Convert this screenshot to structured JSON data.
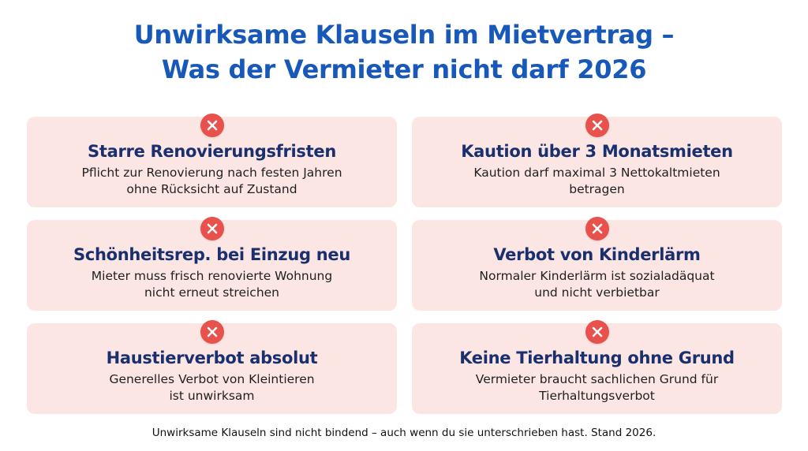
{
  "title": {
    "line1": "Unwirksame Klauseln im Mietvertrag –",
    "line2": "Was der Vermieter nicht darf 2026"
  },
  "colors": {
    "title": "#1758b8",
    "card_background": "#fbe6e4",
    "card_title": "#1a2f6e",
    "icon": "#e8514c"
  },
  "icon": "close-x-circle-icon",
  "cards": [
    {
      "title": "Starre Renovierungsfristen",
      "desc_line1": "Pflicht zur Renovierung nach festen Jahren",
      "desc_line2": "ohne Rücksicht auf Zustand"
    },
    {
      "title": "Kaution über 3 Monatsmieten",
      "desc_line1": "Kaution darf maximal 3 Nettokaltmieten",
      "desc_line2": "betragen"
    },
    {
      "title": "Schönheitsrep. bei Einzug neu",
      "desc_line1": "Mieter muss frisch renovierte Wohnung",
      "desc_line2": "nicht erneut streichen"
    },
    {
      "title": "Verbot von Kinderlärm",
      "desc_line1": "Normaler Kinderlärm ist sozialadäquat",
      "desc_line2": "und nicht verbietbar"
    },
    {
      "title": "Haustierverbot absolut",
      "desc_line1": "Generelles Verbot von Kleintieren",
      "desc_line2": "ist unwirksam"
    },
    {
      "title": "Keine Tierhaltung ohne Grund",
      "desc_line1": "Vermieter braucht sachlichen Grund für",
      "desc_line2": "Tierhaltungsverbot"
    }
  ],
  "footer": "Unwirksame Klauseln sind nicht bindend – auch wenn du sie unterschrieben hast. Stand 2026."
}
